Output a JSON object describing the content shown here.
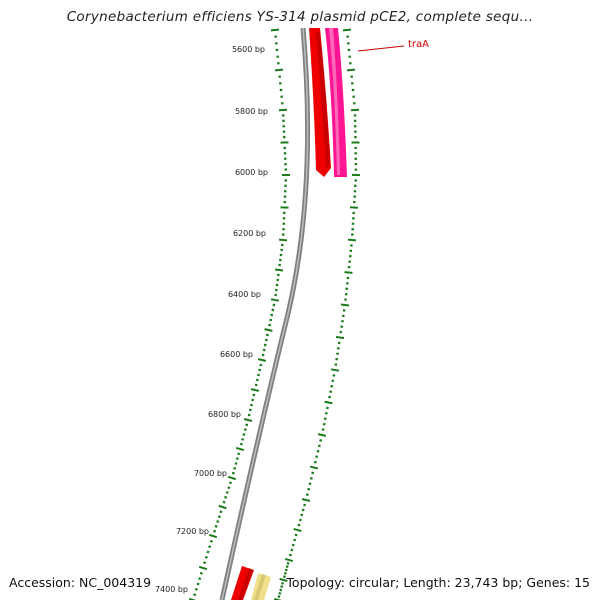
{
  "title": "Corynebacterium efficiens YS-314 plasmid pCE2, complete sequ...",
  "footer": {
    "accession": "Accession: NC_004319",
    "summary": "Topology: circular; Length: 23,743 bp; Genes: 15"
  },
  "ruler": {
    "ticks": [
      {
        "label": "5600 bp"
      },
      {
        "label": "5800 bp"
      },
      {
        "label": "6000 bp"
      },
      {
        "label": "6200 bp"
      },
      {
        "label": "6400 bp"
      },
      {
        "label": "6600 bp"
      },
      {
        "label": "6800 bp"
      },
      {
        "label": "7000 bp"
      },
      {
        "label": "7200 bp"
      },
      {
        "label": "7400 bp"
      }
    ]
  },
  "genes": [
    {
      "name": "traA",
      "strand": "forward",
      "color": "#ff1493"
    }
  ],
  "colors": {
    "backbone": "#808080",
    "tick": "#1a7a1a",
    "reverse_gene": "#ee0000",
    "yellow_gene": "#f0e08a",
    "gene_label": "#cc0000"
  }
}
